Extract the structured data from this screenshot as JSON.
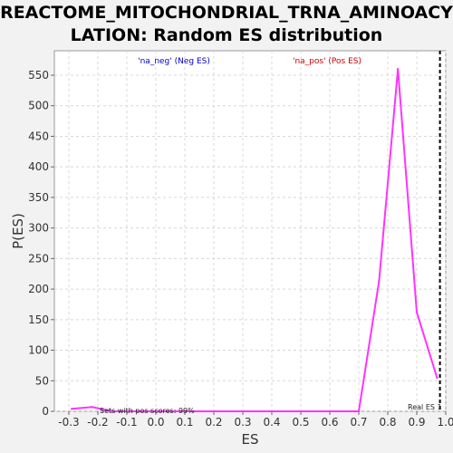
{
  "chart_data": {
    "type": "line",
    "title_lines": [
      "REACTOME_MITOCHONDRIAL_TRNA_AMINOACY",
      "LATION: Random ES distribution"
    ],
    "xlabel": "ES",
    "ylabel": "P(ES)",
    "xlim": [
      -0.35,
      1.0
    ],
    "ylim": [
      0,
      590
    ],
    "x_ticks": [
      "-0.3",
      "-0.2",
      "-0.1",
      "0.0",
      "0.1",
      "0.2",
      "0.3",
      "0.4",
      "0.5",
      "0.6",
      "0.7",
      "0.8",
      "0.9",
      "1.0"
    ],
    "y_ticks": [
      "0",
      "50",
      "100",
      "150",
      "200",
      "250",
      "300",
      "350",
      "400",
      "450",
      "500",
      "550"
    ],
    "grid": true,
    "legend": [
      {
        "label": "'na_neg' (Neg ES)",
        "color": "#0000cc"
      },
      {
        "label": "'na_pos' (Pos ES)",
        "color": "#cc0000"
      }
    ],
    "series": [
      {
        "color": "#ff33ff",
        "x": [
          -0.29,
          -0.22,
          -0.15,
          0.0,
          0.1,
          0.2,
          0.3,
          0.4,
          0.5,
          0.6,
          0.7,
          0.77,
          0.835,
          0.9,
          0.97
        ],
        "y": [
          4,
          7,
          0,
          0,
          0,
          0,
          0,
          0,
          0,
          0,
          0,
          213,
          560,
          162,
          55
        ]
      }
    ],
    "real_es": {
      "x": 0.98,
      "label": "Real ES 1"
    },
    "annotation": "Sets with pos scores: 99%"
  },
  "colors": {
    "line": "#ff33ff",
    "real_es_line": "#000000",
    "grid": "#d8d8d8",
    "plot_bg": "#ffffff",
    "page_bg": "#f2f2f2"
  }
}
